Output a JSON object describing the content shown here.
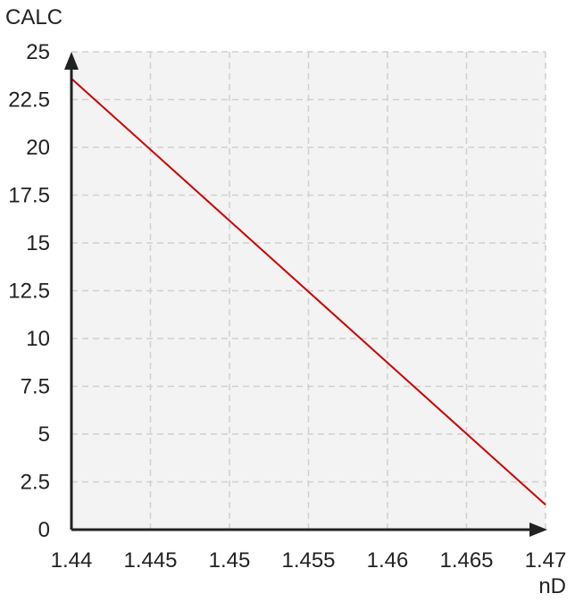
{
  "chart_data": {
    "type": "line",
    "title": "",
    "xlabel": "nD",
    "ylabel": "CALC",
    "xlim": [
      1.44,
      1.47
    ],
    "ylim": [
      0,
      25
    ],
    "x_ticks": [
      "1.44",
      "1.445",
      "1.45",
      "1.455",
      "1.46",
      "1.465",
      "1.47"
    ],
    "y_ticks": [
      "0",
      "2.5",
      "5",
      "7.5",
      "10",
      "12.5",
      "15",
      "17.5",
      "20",
      "22.5",
      "25"
    ],
    "grid": true,
    "series": [
      {
        "x": [
          1.44,
          1.47
        ],
        "y": [
          23.6,
          1.3
        ],
        "color": "#cc0000"
      }
    ],
    "colors": {
      "plot_background": "#f3f3f3",
      "grid": "#d0d0d0",
      "axis": "#222222"
    }
  }
}
